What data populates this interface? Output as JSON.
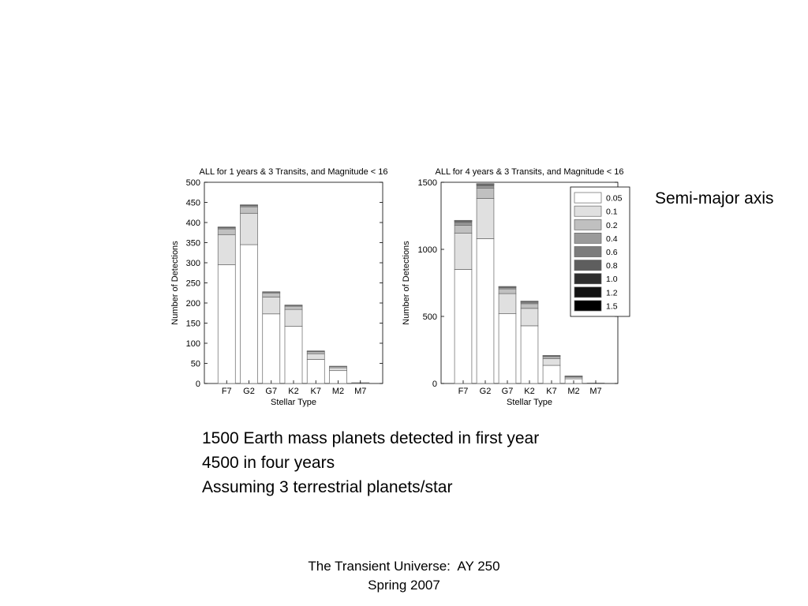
{
  "slide": {
    "side_label": "Semi-major axis",
    "notes": [
      "1500 Earth mass planets detected in first year",
      "4500 in four years",
      "Assuming 3 terrestrial planets/star"
    ],
    "footer": [
      "The Transient Universe:  AY 250",
      "Spring 2007"
    ]
  },
  "colors": {
    "series": [
      "#ffffff",
      "#e0e0e0",
      "#c0c0c0",
      "#9a9a9a",
      "#7c7c7c",
      "#5e5e5e",
      "#2e2e2e",
      "#121212",
      "#000000"
    ],
    "bar_outline": "#666666",
    "axis": "#000000"
  },
  "chart_data": [
    {
      "type": "bar",
      "stacked": true,
      "title": "ALL for 1 years & 3 Transits, and Magnitude < 16",
      "xlabel": "Stellar Type",
      "ylabel": "Number of Detections",
      "categories": [
        "F7",
        "G2",
        "G7",
        "K2",
        "K7",
        "M2",
        "M7"
      ],
      "ylim": [
        0,
        500
      ],
      "yticks": [
        0,
        50,
        100,
        150,
        200,
        250,
        300,
        350,
        400,
        450,
        500
      ],
      "legend": null,
      "series": [
        {
          "name": "0.05",
          "values": [
            295,
            345,
            173,
            142,
            60,
            32,
            1
          ]
        },
        {
          "name": "0.1",
          "values": [
            75,
            78,
            42,
            42,
            14,
            7,
            0.5
          ]
        },
        {
          "name": "0.2",
          "values": [
            14,
            16,
            10,
            8,
            5,
            3,
            0.3
          ]
        },
        {
          "name": "0.4",
          "values": [
            3,
            3,
            2,
            2,
            1,
            1,
            0
          ]
        },
        {
          "name": "0.6",
          "values": [
            1,
            1,
            1,
            1,
            1,
            0,
            0
          ]
        },
        {
          "name": "0.8",
          "values": [
            1,
            1,
            0,
            0,
            0,
            0,
            0
          ]
        },
        {
          "name": "1.0",
          "values": [
            0,
            0,
            0,
            0,
            0,
            0,
            0
          ]
        },
        {
          "name": "1.2",
          "values": [
            0,
            0,
            0,
            0,
            0,
            0,
            0
          ]
        },
        {
          "name": "1.5",
          "values": [
            0,
            0,
            0,
            0,
            0,
            0,
            0
          ]
        }
      ]
    },
    {
      "type": "bar",
      "stacked": true,
      "title": "ALL for 4 years & 3 Transits, and Magnitude < 16",
      "xlabel": "Stellar Type",
      "ylabel": "Number of Detections",
      "categories": [
        "F7",
        "G2",
        "G7",
        "K2",
        "K7",
        "M2",
        "M7"
      ],
      "ylim": [
        0,
        1500
      ],
      "yticks": [
        0,
        500,
        1000,
        1500
      ],
      "legend": "top-right",
      "series": [
        {
          "name": "0.05",
          "values": [
            850,
            1080,
            520,
            430,
            135,
            35,
            2
          ]
        },
        {
          "name": "0.1",
          "values": [
            270,
            300,
            150,
            130,
            50,
            12,
            1
          ]
        },
        {
          "name": "0.2",
          "values": [
            60,
            75,
            35,
            35,
            15,
            5,
            0.5
          ]
        },
        {
          "name": "0.4",
          "values": [
            20,
            18,
            10,
            10,
            5,
            3,
            0
          ]
        },
        {
          "name": "0.6",
          "values": [
            8,
            8,
            5,
            5,
            3,
            1,
            0
          ]
        },
        {
          "name": "0.8",
          "values": [
            4,
            5,
            2,
            3,
            1,
            0,
            0
          ]
        },
        {
          "name": "1.0",
          "values": [
            2,
            2,
            1,
            1,
            0,
            0,
            0
          ]
        },
        {
          "name": "1.2",
          "values": [
            1,
            1,
            0,
            0,
            0,
            0,
            0
          ]
        },
        {
          "name": "1.5",
          "values": [
            1,
            1,
            0,
            0,
            0,
            0,
            0
          ]
        }
      ]
    }
  ]
}
